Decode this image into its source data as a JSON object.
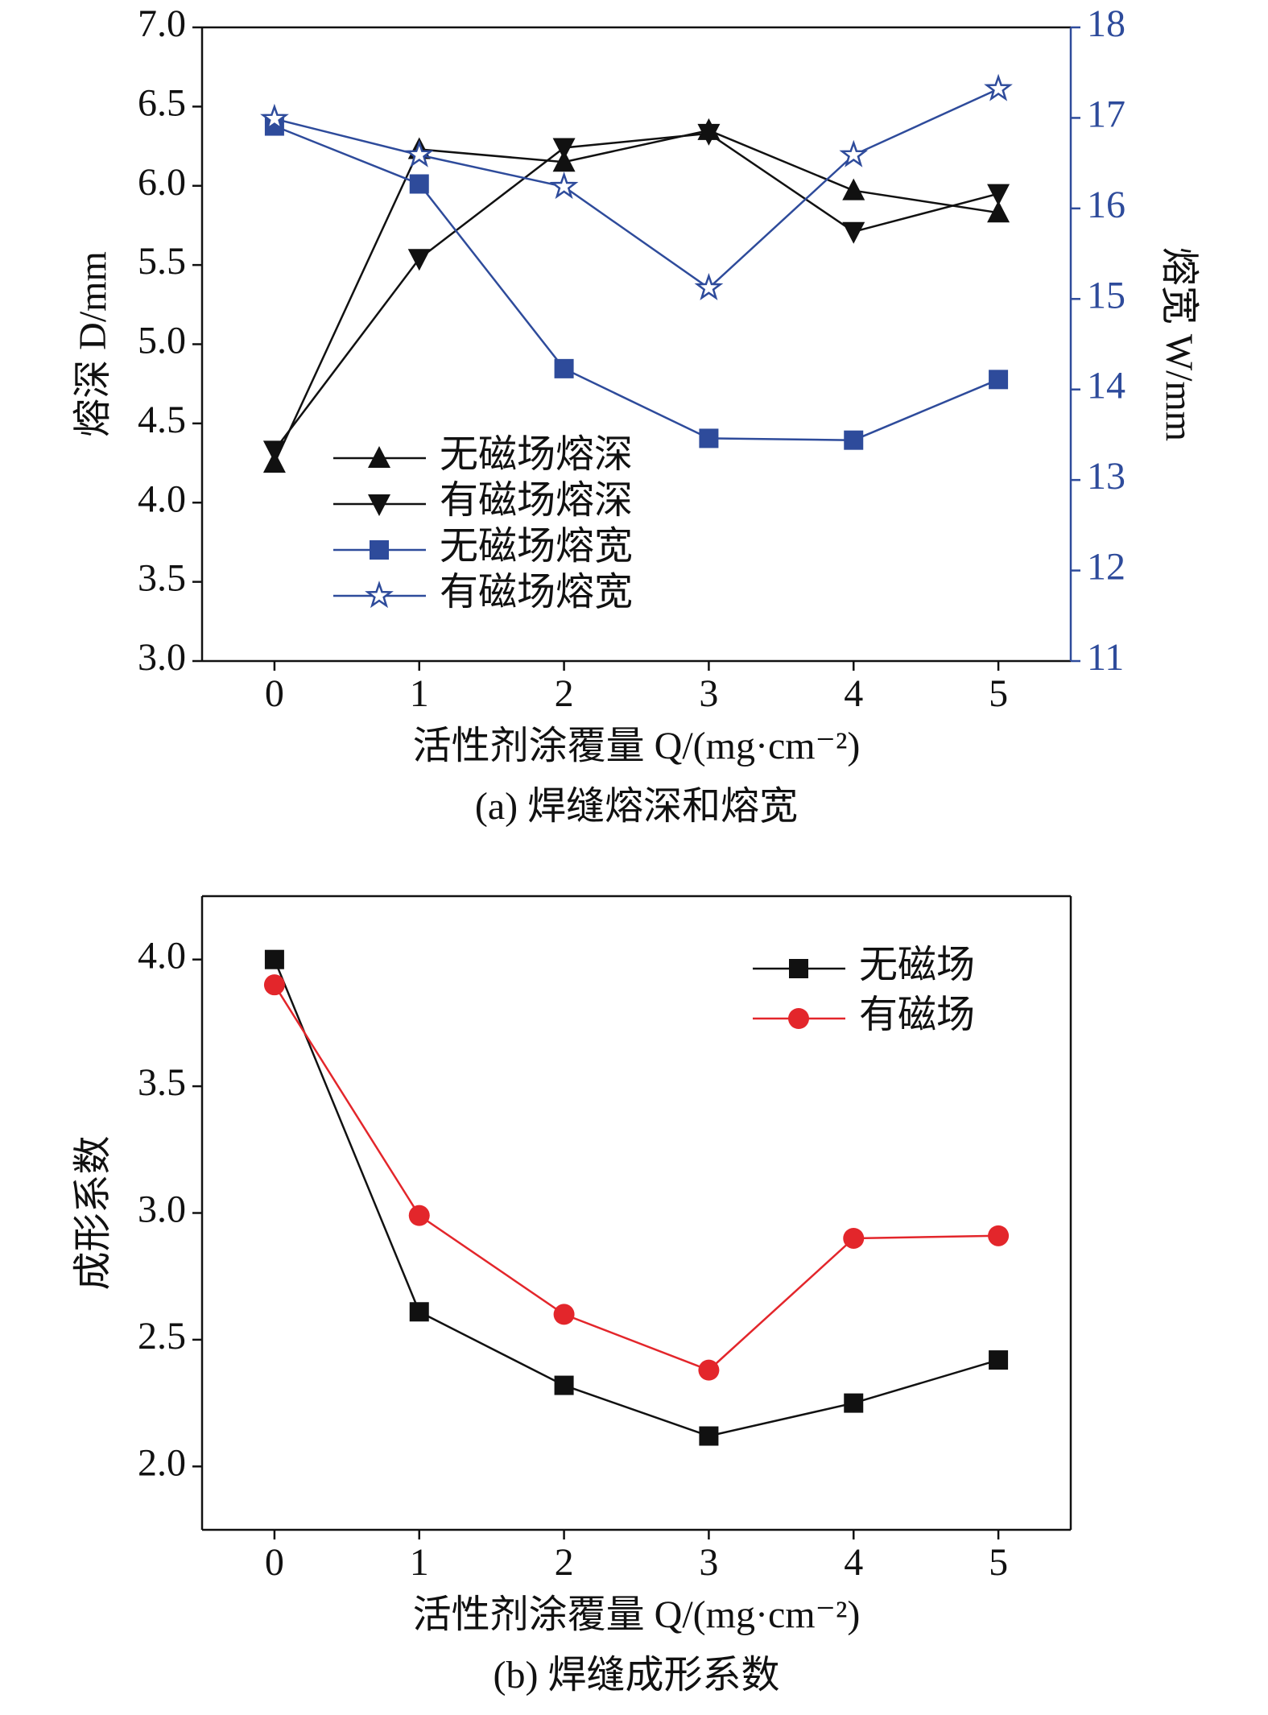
{
  "chart_data": [
    {
      "type": "line",
      "xlabel": "活性剂涂覆量 Q/(mg·cm⁻²)",
      "ylabel": "熔深 D/mm",
      "y2label": "熔宽 W/mm",
      "caption": "(a) 焊缝熔深和熔宽",
      "x": [
        0,
        1,
        2,
        3,
        4,
        5
      ],
      "xlim": [
        -0.5,
        5.5
      ],
      "xticks": [
        0,
        1,
        2,
        3,
        4,
        5
      ],
      "ylim": [
        3,
        7
      ],
      "yticks": [
        {
          "value": 3,
          "label": "3.0"
        },
        {
          "value": 3.5,
          "label": "3.5"
        },
        {
          "value": 4,
          "label": "4.0"
        },
        {
          "value": 4.5,
          "label": "4.5"
        },
        {
          "value": 5,
          "label": "5.0"
        },
        {
          "value": 5.5,
          "label": "5.5"
        },
        {
          "value": 6,
          "label": "6.0"
        },
        {
          "value": 6.5,
          "label": "6.5"
        },
        {
          "value": 7,
          "label": "7.0"
        }
      ],
      "y2lim": [
        11,
        18
      ],
      "y2ticks": [
        11,
        12,
        13,
        14,
        15,
        16,
        17,
        18
      ],
      "y2color": "#2e4b9b",
      "legend": "lower-left",
      "series": [
        {
          "name": "无磁场熔深",
          "color": "#111111",
          "marker": "triangle-up",
          "values": [
            4.25,
            6.23,
            6.15,
            6.35,
            5.97,
            5.83
          ]
        },
        {
          "name": "有磁场熔深",
          "color": "#111111",
          "marker": "triangle-down",
          "values": [
            4.33,
            5.54,
            6.24,
            6.33,
            5.71,
            5.95
          ]
        },
        {
          "name": "无磁场熔宽",
          "color": "#2e4b9b",
          "marker": "square",
          "axis": "y2",
          "values": [
            16.91,
            16.27,
            14.23,
            13.46,
            13.44,
            14.11
          ]
        },
        {
          "name": "有磁场熔宽",
          "color": "#2e4b9b",
          "marker": "star",
          "axis": "y2",
          "values": [
            16.99,
            16.59,
            16.24,
            15.12,
            16.59,
            17.32
          ]
        }
      ]
    },
    {
      "type": "line",
      "xlabel": "活性剂涂覆量 Q/(mg·cm⁻²)",
      "ylabel": "成形系数",
      "caption": "(b) 焊缝成形系数",
      "x": [
        0,
        1,
        2,
        3,
        4,
        5
      ],
      "xlim": [
        -0.5,
        5.5
      ],
      "xticks": [
        0,
        1,
        2,
        3,
        4,
        5
      ],
      "ylim": [
        1.75,
        4.25
      ],
      "yticks": [
        {
          "value": 2,
          "label": "2.0"
        },
        {
          "value": 2.5,
          "label": "2.5"
        },
        {
          "value": 3,
          "label": "3.0"
        },
        {
          "value": 3.5,
          "label": "3.5"
        },
        {
          "value": 4,
          "label": "4.0"
        }
      ],
      "legend": "upper-right",
      "series": [
        {
          "name": "无磁场",
          "color": "#111111",
          "marker": "square",
          "values": [
            4.0,
            2.61,
            2.32,
            2.12,
            2.25,
            2.42
          ]
        },
        {
          "name": "有磁场",
          "color": "#e3262b",
          "marker": "circle",
          "values": [
            3.9,
            2.99,
            2.6,
            2.38,
            2.9,
            2.91
          ]
        }
      ]
    }
  ]
}
